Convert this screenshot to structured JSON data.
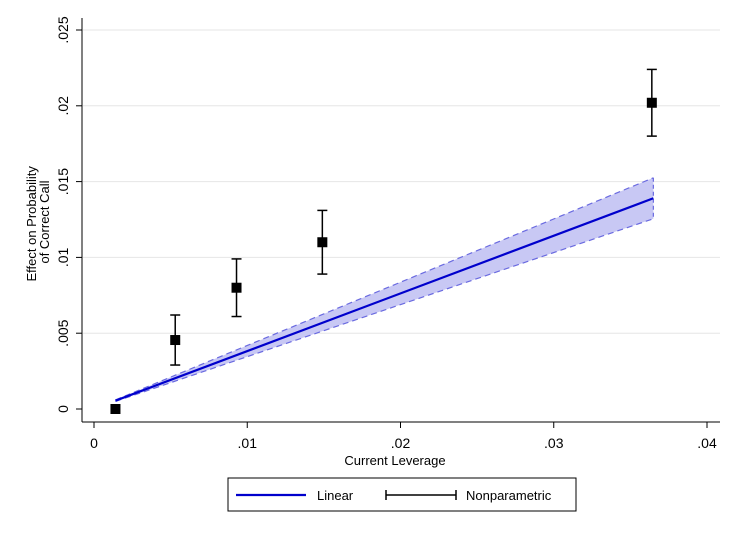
{
  "chart_data": {
    "type": "line",
    "title": "",
    "xlabel": "Current Leverage",
    "ylabel_lines": [
      "Effect on Probability",
      "of Correct Call"
    ],
    "xlim": [
      0,
      0.04
    ],
    "ylim": [
      0,
      0.025
    ],
    "x_ticks": [
      {
        "value": 0,
        "label": "0"
      },
      {
        "value": 0.01,
        "label": ".01"
      },
      {
        "value": 0.02,
        "label": ".02"
      },
      {
        "value": 0.03,
        "label": ".03"
      },
      {
        "value": 0.04,
        "label": ".04"
      }
    ],
    "y_ticks": [
      {
        "value": 0,
        "label": "0"
      },
      {
        "value": 0.005,
        "label": ".005"
      },
      {
        "value": 0.01,
        "label": ".01"
      },
      {
        "value": 0.015,
        "label": ".015"
      },
      {
        "value": 0.02,
        "label": ".02"
      },
      {
        "value": 0.025,
        "label": ".025"
      }
    ],
    "grid": true,
    "legend_position": "bottom",
    "series": [
      {
        "name": "Linear",
        "kind": "line-with-band",
        "color": "#0000cc",
        "band_fill": "#c8c8f4",
        "band_edge": "#6a6ae0",
        "x": [
          0.0014,
          0.0365
        ],
        "y": [
          0.00055,
          0.0139
        ],
        "band_lower": [
          0.0005,
          0.01255
        ],
        "band_upper": [
          0.0006,
          0.01525
        ]
      },
      {
        "name": "Nonparametric",
        "kind": "points-with-errorbars",
        "color": "#000000",
        "x": [
          0.0014,
          0.0053,
          0.0093,
          0.0149,
          0.0364
        ],
        "y": [
          0.0,
          0.00455,
          0.008,
          0.011,
          0.0202
        ],
        "lower": [
          0.0,
          0.0029,
          0.0061,
          0.0089,
          0.018
        ],
        "upper": [
          0.0,
          0.0062,
          0.0099,
          0.0131,
          0.0224
        ]
      }
    ]
  }
}
